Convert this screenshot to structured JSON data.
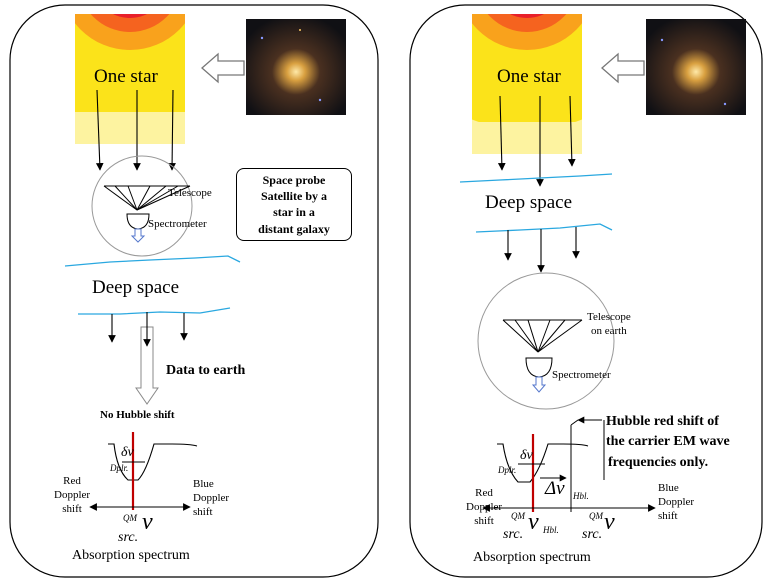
{
  "left_panel": {
    "star_label": "One star",
    "telescope_label": "Telescope",
    "spectrometer_label": "Spectrometer",
    "probe_box_lines": [
      "Space probe",
      "Satellite  by a",
      "star  in a",
      "distant galaxy"
    ],
    "deep_space_label": "Deep space",
    "data_to_earth_label": "Data to earth",
    "no_hubble_label": "No Hubble shift",
    "delta_nu_label": "δν",
    "dplr_label": "Dplr.",
    "red_doppler_lines": [
      "Red",
      "Doppler",
      "shift"
    ],
    "blue_doppler_lines": [
      "Blue",
      "Doppler",
      "shift"
    ],
    "qm_label": "QM",
    "nu_symbol": "ν",
    "src_label": "src.",
    "absorption_label": "Absorption spectrum"
  },
  "right_panel": {
    "star_label": "One star",
    "deep_space_label": "Deep space",
    "telescope_lines": [
      "Telescope",
      "on earth"
    ],
    "spectrometer_label": "Spectrometer",
    "hubble_note_lines": [
      "Hubble red shift of",
      "the carrier EM wave",
      "frequencies only."
    ],
    "delta_nu_label": "δν",
    "dplr_label": "Dplr.",
    "big_delta_nu_label": "Δν",
    "hbl_label": "Hbl.",
    "red_doppler_lines": [
      "Red",
      "Doppler",
      "shift"
    ],
    "blue_doppler_lines": [
      "Blue",
      "Doppler",
      "shift"
    ],
    "qm_label": "QM",
    "nu_symbol": "ν",
    "src_label": "src.",
    "hbl_sub_label": "Hbl.",
    "qm2_label": "QM",
    "src2_label": "src.",
    "nu2_symbol": "ν",
    "absorption_label": "Absorption spectrum"
  },
  "colors": {
    "star_core": "#e8202a",
    "star_ring1": "#f5631f",
    "star_ring2": "#f9a21c",
    "star_outer": "#fbe31a",
    "star_pale": "#fdf3a0",
    "deep_space_line": "#2aa8e0",
    "spectrum_line": "#c00000"
  }
}
